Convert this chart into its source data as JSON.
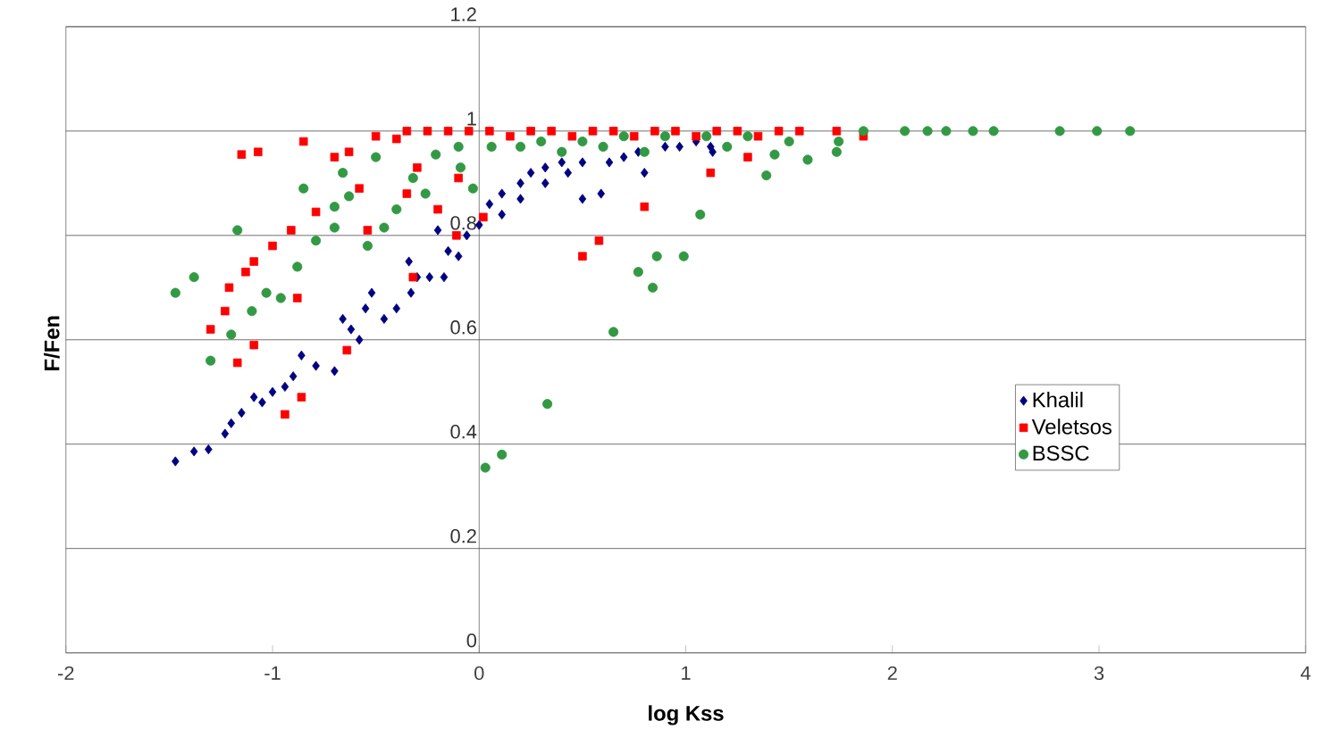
{
  "chart_data": {
    "type": "scatter",
    "xlabel": "log Kss",
    "ylabel": "F/Fen",
    "xlim": [
      -2,
      4
    ],
    "ylim": [
      0,
      1.2
    ],
    "xticks": [
      -2,
      -1,
      0,
      1,
      2,
      3,
      4
    ],
    "yticks": [
      0,
      0.2,
      0.4,
      0.6,
      0.8,
      1,
      1.2
    ],
    "grid": "y",
    "legend": "center right",
    "series": [
      {
        "name": "Khalil",
        "color": "#000080",
        "marker": "diamond",
        "x": [
          -1.47,
          -1.38,
          -1.31,
          -1.23,
          -1.2,
          -1.15,
          -1.09,
          -1.05,
          -1.0,
          -0.94,
          -0.9,
          -0.86,
          -0.79,
          -0.7,
          -0.66,
          -0.62,
          -0.58,
          -0.55,
          -0.52,
          -0.46,
          -0.4,
          -0.34,
          -0.33,
          -0.3,
          -0.24,
          -0.2,
          -0.17,
          -0.15,
          -0.1,
          -0.06,
          0.0,
          0.05,
          0.11,
          0.11,
          0.2,
          0.2,
          0.25,
          0.32,
          0.32,
          0.4,
          0.43,
          0.5,
          0.5,
          0.59,
          0.63,
          0.7,
          0.77,
          0.8,
          0.9,
          0.97,
          1.05,
          1.12,
          1.13
        ],
        "values": [
          0.367,
          0.386,
          0.39,
          0.42,
          0.44,
          0.46,
          0.49,
          0.48,
          0.5,
          0.51,
          0.53,
          0.57,
          0.55,
          0.54,
          0.64,
          0.62,
          0.6,
          0.66,
          0.69,
          0.64,
          0.66,
          0.75,
          0.69,
          0.72,
          0.72,
          0.81,
          0.72,
          0.77,
          0.76,
          0.8,
          0.82,
          0.86,
          0.88,
          0.84,
          0.9,
          0.87,
          0.92,
          0.93,
          0.9,
          0.94,
          0.92,
          0.87,
          0.94,
          0.88,
          0.94,
          0.95,
          0.96,
          0.92,
          0.97,
          0.97,
          0.98,
          0.97,
          0.96
        ]
      },
      {
        "name": "Veletsos",
        "color": "#ff0000",
        "marker": "square",
        "x": [
          -1.3,
          -1.23,
          -1.21,
          -1.17,
          -1.15,
          -1.13,
          -1.09,
          -1.09,
          -1.07,
          -1.0,
          -0.94,
          -0.91,
          -0.88,
          -0.86,
          -0.85,
          -0.79,
          -0.7,
          -0.64,
          -0.63,
          -0.58,
          -0.54,
          -0.5,
          -0.4,
          -0.35,
          -0.35,
          -0.32,
          -0.3,
          -0.25,
          -0.2,
          -0.15,
          -0.11,
          -0.1,
          -0.05,
          0.02,
          0.05,
          0.15,
          0.25,
          0.35,
          0.45,
          0.5,
          0.55,
          0.58,
          0.65,
          0.75,
          0.8,
          0.85,
          0.95,
          1.05,
          1.12,
          1.15,
          1.25,
          1.3,
          1.35,
          1.45,
          1.55,
          1.73,
          1.86
        ],
        "values": [
          0.62,
          0.655,
          0.7,
          0.556,
          0.955,
          0.73,
          0.75,
          0.59,
          0.96,
          0.78,
          0.457,
          0.81,
          0.68,
          0.49,
          0.98,
          0.845,
          0.95,
          0.58,
          0.96,
          0.89,
          0.81,
          0.99,
          0.985,
          0.88,
          1.0,
          0.72,
          0.93,
          1.0,
          0.85,
          1.0,
          0.8,
          0.91,
          1.0,
          0.835,
          1.0,
          0.99,
          1.0,
          1.0,
          0.99,
          0.76,
          1.0,
          0.79,
          1.0,
          0.99,
          0.855,
          1.0,
          1.0,
          0.99,
          0.92,
          1.0,
          1.0,
          0.95,
          0.99,
          1.0,
          1.0,
          1.0,
          0.99
        ]
      },
      {
        "name": "BSSC",
        "color": "#339944",
        "marker": "circle",
        "x": [
          -1.47,
          -1.38,
          -1.3,
          -1.2,
          -1.17,
          -1.1,
          -1.03,
          -0.96,
          -0.88,
          -0.85,
          -0.79,
          -0.7,
          -0.7,
          -0.66,
          -0.63,
          -0.54,
          -0.5,
          -0.46,
          -0.4,
          -0.32,
          -0.26,
          -0.21,
          -0.1,
          -0.09,
          -0.03,
          0.03,
          0.06,
          0.11,
          0.2,
          0.3,
          0.33,
          0.4,
          0.5,
          0.6,
          0.65,
          0.7,
          0.77,
          0.8,
          0.84,
          0.86,
          0.9,
          0.99,
          1.07,
          1.1,
          1.2,
          1.3,
          1.39,
          1.43,
          1.5,
          1.59,
          1.73,
          1.74,
          1.86,
          2.06,
          2.17,
          2.26,
          2.39,
          2.49,
          2.81,
          2.99,
          3.15
        ],
        "values": [
          0.69,
          0.72,
          0.56,
          0.61,
          0.81,
          0.655,
          0.69,
          0.68,
          0.74,
          0.89,
          0.79,
          0.815,
          0.855,
          0.92,
          0.875,
          0.78,
          0.95,
          0.815,
          0.85,
          0.91,
          0.88,
          0.955,
          0.97,
          0.93,
          0.89,
          0.355,
          0.97,
          0.38,
          0.97,
          0.98,
          0.477,
          0.96,
          0.98,
          0.97,
          0.615,
          0.99,
          0.73,
          0.96,
          0.7,
          0.76,
          0.99,
          0.76,
          0.84,
          0.99,
          0.97,
          0.99,
          0.915,
          0.955,
          0.98,
          0.945,
          0.96,
          0.98,
          1.0,
          1.0,
          1.0,
          1.0,
          1.0,
          1.0,
          1.0,
          1.0,
          1.0
        ]
      }
    ]
  }
}
